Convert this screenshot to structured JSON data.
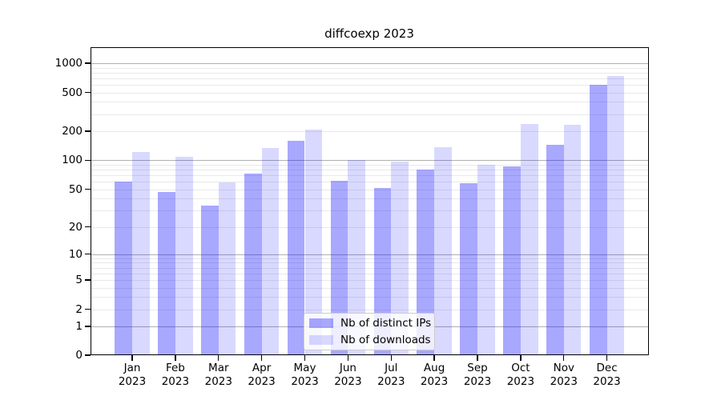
{
  "title": "diffcoexp 2023",
  "legend": {
    "items": [
      {
        "label": "Nb of distinct IPs",
        "color_hex": "#a8a8ff",
        "color_rgba": "rgba(0,0,255,0.34)"
      },
      {
        "label": "Nb of downloads",
        "color_hex": "#d9d9ff",
        "color_rgba": "rgba(0,0,255,0.15)"
      }
    ]
  },
  "chart_data": {
    "type": "bar",
    "title": "diffcoexp 2023",
    "categories": [
      "Jan",
      "Feb",
      "Mar",
      "Apr",
      "May",
      "Jun",
      "Jul",
      "Aug",
      "Sep",
      "Oct",
      "Nov",
      "Dec"
    ],
    "year_label": "2023",
    "series": [
      {
        "name": "Nb of distinct IPs",
        "color_hex": "#a8a8ff",
        "color_rgba": "rgba(0,0,255,0.34)",
        "values": [
          60,
          47,
          34,
          73,
          160,
          61,
          52,
          80,
          58,
          87,
          145,
          600
        ]
      },
      {
        "name": "Nb of downloads",
        "color_hex": "#d9d9ff",
        "color_rgba": "rgba(0,0,255,0.15)",
        "values": [
          122,
          108,
          59,
          134,
          207,
          100,
          97,
          136,
          90,
          239,
          232,
          735
        ]
      }
    ],
    "xlabel": "",
    "ylabel": "",
    "yscale": "log1p",
    "ylim": [
      0,
      1460
    ],
    "y_ticks": [
      0,
      1,
      2,
      5,
      10,
      20,
      50,
      100,
      200,
      500,
      1000
    ],
    "solid_gridlines": [
      1,
      10,
      100,
      1000
    ],
    "minor_gridline_decades": [
      1,
      10,
      100
    ],
    "grid": true,
    "legend_position": "bottom-center",
    "colors": {
      "major_gridline": "#b0b0b0",
      "minor_gridline": "#e9e9e9",
      "axis": "#000000"
    }
  }
}
